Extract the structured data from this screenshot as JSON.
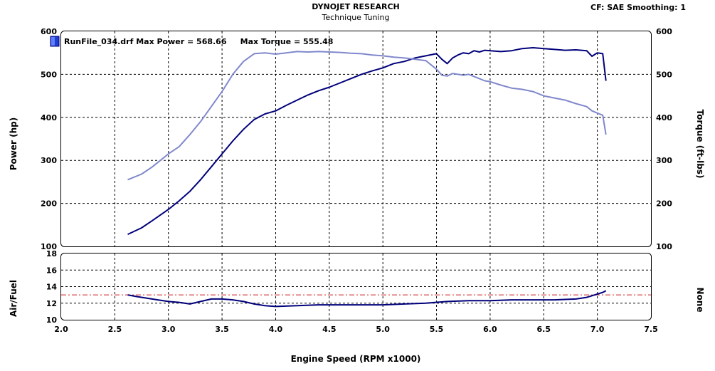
{
  "header": {
    "title": "DYNOJET RESEARCH",
    "subtitle": "Technique Tuning",
    "cf_info": "CF: SAE  Smoothing: 1"
  },
  "legend": {
    "text": "RunFile_034.drf Max Power = 568.66     Max Torque = 555.48",
    "swatch_color": "#1f3fd0"
  },
  "colors": {
    "power": "#00007b",
    "torque": "#8088cc",
    "afr": "#00007b",
    "afr_reference": "#cc2222",
    "grid": "#000000"
  },
  "chart_data": [
    {
      "type": "line",
      "title": "DYNOJET RESEARCH",
      "subtitle": "Technique Tuning",
      "xlabel": "Engine Speed (RPM x1000)",
      "ylabel": "Power (hp)",
      "y2label": "Torque (ft-lbs)",
      "xlim": [
        2.0,
        7.5
      ],
      "ylim": [
        100,
        600
      ],
      "y2lim": [
        100,
        600
      ],
      "x_ticks": [
        "2.0",
        "2.5",
        "3.0",
        "3.5",
        "4.0",
        "4.5",
        "5.0",
        "5.5",
        "6.0",
        "6.5",
        "7.0",
        "7.5"
      ],
      "y_ticks": [
        "100",
        "200",
        "300",
        "400",
        "500",
        "600"
      ],
      "y2_ticks": [
        "100",
        "200",
        "300",
        "400",
        "500",
        "600"
      ],
      "grid": true,
      "series": [
        {
          "name": "Power",
          "axis": "left",
          "x": [
            2.62,
            2.75,
            2.85,
            3.0,
            3.1,
            3.2,
            3.3,
            3.4,
            3.5,
            3.6,
            3.7,
            3.8,
            3.9,
            4.0,
            4.1,
            4.2,
            4.3,
            4.4,
            4.5,
            4.6,
            4.7,
            4.8,
            4.9,
            5.0,
            5.1,
            5.2,
            5.3,
            5.4,
            5.5,
            5.55,
            5.6,
            5.65,
            5.7,
            5.75,
            5.8,
            5.85,
            5.9,
            5.95,
            6.0,
            6.1,
            6.2,
            6.3,
            6.4,
            6.5,
            6.6,
            6.7,
            6.8,
            6.9,
            6.95,
            7.0,
            7.05,
            7.08
          ],
          "values": [
            128,
            143,
            160,
            186,
            206,
            228,
            255,
            285,
            315,
            345,
            372,
            395,
            408,
            415,
            428,
            440,
            452,
            462,
            470,
            480,
            490,
            500,
            508,
            515,
            525,
            530,
            538,
            543,
            548,
            535,
            525,
            538,
            545,
            550,
            548,
            555,
            552,
            556,
            555,
            553,
            555,
            560,
            562,
            560,
            558,
            556,
            557,
            555,
            542,
            550,
            548,
            485
          ]
        },
        {
          "name": "Torque",
          "axis": "right",
          "x": [
            2.62,
            2.75,
            2.85,
            3.0,
            3.1,
            3.2,
            3.3,
            3.4,
            3.5,
            3.6,
            3.7,
            3.8,
            3.9,
            4.0,
            4.1,
            4.2,
            4.3,
            4.4,
            4.5,
            4.6,
            4.7,
            4.8,
            4.9,
            5.0,
            5.1,
            5.2,
            5.3,
            5.4,
            5.5,
            5.55,
            5.6,
            5.65,
            5.7,
            5.75,
            5.8,
            5.85,
            5.9,
            5.95,
            6.0,
            6.1,
            6.2,
            6.3,
            6.4,
            6.5,
            6.6,
            6.7,
            6.8,
            6.9,
            6.95,
            7.0,
            7.05,
            7.08
          ],
          "values": [
            255,
            268,
            285,
            315,
            332,
            360,
            390,
            425,
            460,
            500,
            530,
            548,
            550,
            547,
            550,
            553,
            552,
            553,
            552,
            551,
            549,
            548,
            545,
            543,
            540,
            538,
            535,
            532,
            512,
            498,
            496,
            502,
            500,
            498,
            500,
            495,
            490,
            485,
            483,
            475,
            468,
            465,
            460,
            450,
            445,
            440,
            432,
            425,
            415,
            410,
            405,
            360
          ]
        }
      ]
    },
    {
      "type": "line",
      "xlabel": "Engine Speed (RPM x1000)",
      "ylabel": "Air/Fuel",
      "y2label": "None",
      "xlim": [
        2.0,
        7.5
      ],
      "ylim": [
        10,
        18
      ],
      "y_ticks": [
        "10",
        "12",
        "14",
        "16",
        "18"
      ],
      "grid": true,
      "reference_line": 13.0,
      "series": [
        {
          "name": "Air/Fuel",
          "x": [
            2.62,
            2.7,
            2.8,
            2.9,
            3.0,
            3.1,
            3.2,
            3.3,
            3.4,
            3.5,
            3.6,
            3.7,
            3.8,
            3.9,
            4.0,
            4.2,
            4.4,
            4.6,
            4.8,
            5.0,
            5.2,
            5.4,
            5.6,
            5.8,
            6.0,
            6.2,
            6.4,
            6.6,
            6.8,
            6.9,
            6.95,
            7.0,
            7.05,
            7.08
          ],
          "values": [
            13.0,
            12.8,
            12.6,
            12.4,
            12.2,
            12.1,
            11.9,
            12.2,
            12.5,
            12.5,
            12.4,
            12.2,
            11.9,
            11.7,
            11.6,
            11.7,
            11.8,
            11.8,
            11.8,
            11.8,
            11.9,
            12.0,
            12.2,
            12.3,
            12.3,
            12.4,
            12.4,
            12.4,
            12.5,
            12.7,
            12.9,
            13.1,
            13.3,
            13.5
          ]
        }
      ]
    }
  ],
  "axis_titles": {
    "x": "Engine Speed (RPM x1000)",
    "power": "Power (hp)",
    "torque": "Torque (ft-lbs)",
    "afr": "Air/Fuel",
    "none": "None"
  }
}
